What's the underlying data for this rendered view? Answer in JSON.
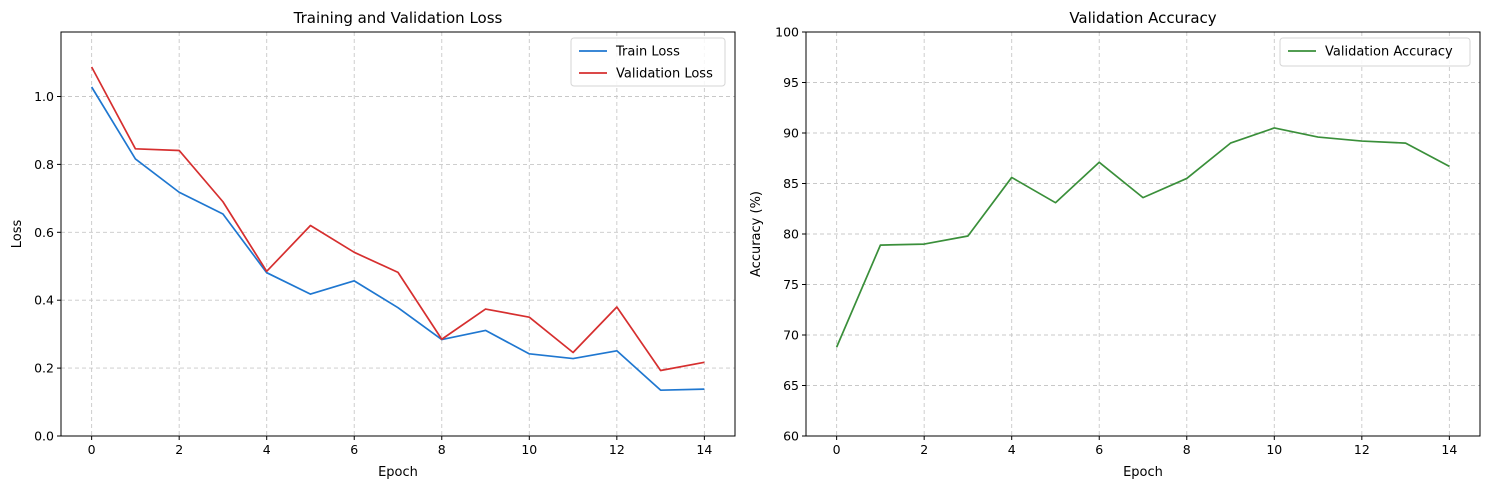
{
  "chart_data": [
    {
      "type": "line",
      "title": "Training and Validation Loss",
      "xlabel": "Epoch",
      "ylabel": "Loss",
      "x": [
        0,
        1,
        2,
        3,
        4,
        5,
        6,
        7,
        8,
        9,
        10,
        11,
        12,
        13,
        14
      ],
      "xlim": [
        -0.7,
        14.7
      ],
      "ylim": [
        0,
        1.19
      ],
      "xticks": [
        0,
        2,
        4,
        6,
        8,
        10,
        12,
        14
      ],
      "yticks": [
        0.0,
        0.2,
        0.4,
        0.6,
        0.8,
        1.0
      ],
      "ytick_labels": [
        "0.0",
        "0.2",
        "0.4",
        "0.6",
        "0.8",
        "1.0"
      ],
      "grid": true,
      "legend_position": "top-right",
      "series": [
        {
          "name": "Train Loss",
          "color": "#1f77d0",
          "values": [
            1.028,
            0.816,
            0.718,
            0.654,
            0.481,
            0.418,
            0.457,
            0.378,
            0.284,
            0.311,
            0.242,
            0.228,
            0.251,
            0.135,
            0.138
          ]
        },
        {
          "name": "Validation Loss",
          "color": "#d62f2f",
          "values": [
            1.087,
            0.846,
            0.841,
            0.69,
            0.485,
            0.62,
            0.541,
            0.482,
            0.285,
            0.374,
            0.35,
            0.246,
            0.38,
            0.193,
            0.217
          ]
        }
      ]
    },
    {
      "type": "line",
      "title": "Validation Accuracy",
      "xlabel": "Epoch",
      "ylabel": "Accuracy (%)",
      "x": [
        0,
        1,
        2,
        3,
        4,
        5,
        6,
        7,
        8,
        9,
        10,
        11,
        12,
        13,
        14
      ],
      "xlim": [
        -0.7,
        14.7
      ],
      "ylim": [
        60,
        100
      ],
      "xticks": [
        0,
        2,
        4,
        6,
        8,
        10,
        12,
        14
      ],
      "yticks": [
        60,
        65,
        70,
        75,
        80,
        85,
        90,
        95,
        100
      ],
      "ytick_labels": [
        "60",
        "65",
        "70",
        "75",
        "80",
        "85",
        "90",
        "95",
        "100"
      ],
      "grid": true,
      "legend_position": "top-right",
      "series": [
        {
          "name": "Validation Accuracy",
          "color": "#3a8f3a",
          "values": [
            68.8,
            78.9,
            79.0,
            79.8,
            85.6,
            83.1,
            87.1,
            83.6,
            85.5,
            89.0,
            90.5,
            89.6,
            89.2,
            89.0,
            86.7
          ]
        }
      ]
    }
  ]
}
